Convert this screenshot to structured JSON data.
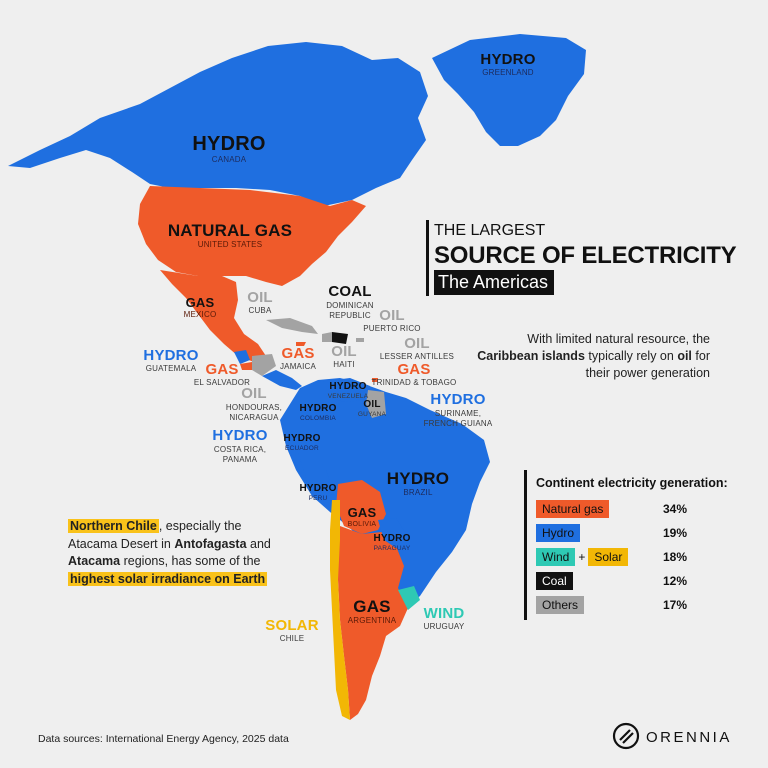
{
  "colors": {
    "background": "#efefef",
    "hydro": "#1f6fe0",
    "natural_gas": "#ef5a2a",
    "wind": "#2ec9b4",
    "solar": "#f2b705",
    "coal": "#111111",
    "oil_others": "#a3a3a3"
  },
  "title": {
    "line1": "THE LARGEST",
    "line2": "SOURCE OF ELECTRICITY",
    "line3": "The Americas"
  },
  "caribbean_note": {
    "part1": "With limited natural resource, the",
    "bold": "Caribbean islands",
    "part2": "typically rely on",
    "bold2": "oil",
    "part3": "for their power generation"
  },
  "chile_note": {
    "highlight1": "Northern Chile",
    "text1": ", especially the Atacama Desert in",
    "bold1": "Antofagasta",
    "text2": "and",
    "bold2": "Atacama",
    "text3": "regions, has some of the",
    "highlight2": "highest solar irradiance on Earth"
  },
  "legend": {
    "title": "Continent electricity generation:",
    "rows": [
      {
        "label": "Natural gas",
        "value": "34%",
        "color": "#ef5a2a"
      },
      {
        "label": "Hydro",
        "value": "19%",
        "color": "#1f6fe0"
      },
      {
        "label": "Wind",
        "label2": "Solar",
        "joiner": "+",
        "value": "18%",
        "color": "#2ec9b4",
        "color2": "#f2b705"
      },
      {
        "label": "Coal",
        "value": "12%",
        "color": "#111111"
      },
      {
        "label": "Others",
        "value": "17%",
        "color": "#a3a3a3"
      }
    ]
  },
  "map_labels": {
    "greenland": {
      "source": "HYDRO",
      "country": "GREENLAND"
    },
    "canada": {
      "source": "HYDRO",
      "country": "CANADA"
    },
    "us": {
      "source": "NATURAL GAS",
      "country": "UNITED STATES"
    },
    "mexico": {
      "source": "GAS",
      "country": "MEXICO"
    },
    "cuba": {
      "source": "OIL",
      "country": "CUBA"
    },
    "dominican": {
      "source": "COAL",
      "country": "DOMINICAN REPUBLIC"
    },
    "puerto_rico": {
      "source": "OIL",
      "country": "PUERTO RICO"
    },
    "lesser_antilles": {
      "source": "OIL",
      "country": "LESSER ANTILLES"
    },
    "haiti": {
      "source": "OIL",
      "country": "HAITI"
    },
    "jamaica": {
      "source": "GAS",
      "country": "JAMAICA"
    },
    "guatemala": {
      "source": "HYDRO",
      "country": "GUATEMALA"
    },
    "el_salvador": {
      "source": "GAS",
      "country": "EL SALVADOR"
    },
    "honduras": {
      "source": "OIL",
      "country": "HONDOURAS, NICARAGUA"
    },
    "costa_rica": {
      "source": "HYDRO",
      "country": "COSTA RICA, PANAMA"
    },
    "trinidad": {
      "source": "GAS",
      "country": "TRINIDAD & TOBAGO"
    },
    "venezuela": {
      "source": "HYDRO",
      "country": "VENEZUELA"
    },
    "guyana": {
      "source": "OIL",
      "country": "GUYANA"
    },
    "suriname": {
      "source": "HYDRO",
      "country": "SURINAME, FRENCH GUIANA"
    },
    "colombia": {
      "source": "HYDRO",
      "country": "COLOMBIA"
    },
    "ecuador": {
      "source": "HYDRO",
      "country": "ECUADOR"
    },
    "brazil": {
      "source": "HYDRO",
      "country": "BRAZIL"
    },
    "peru": {
      "source": "HYDRO",
      "country": "PERU"
    },
    "bolivia": {
      "source": "GAS",
      "country": "BOLIVIA"
    },
    "paraguay": {
      "source": "HYDRO",
      "country": "PARAGUAY"
    },
    "argentina": {
      "source": "GAS",
      "country": "ARGENTINA"
    },
    "uruguay": {
      "source": "WIND",
      "country": "URUGUAY"
    },
    "chile": {
      "source": "SOLAR",
      "country": "CHILE"
    }
  },
  "footer": {
    "sources": "Data sources: International Energy Agency, 2025 data",
    "brand": "ORENNIA"
  }
}
